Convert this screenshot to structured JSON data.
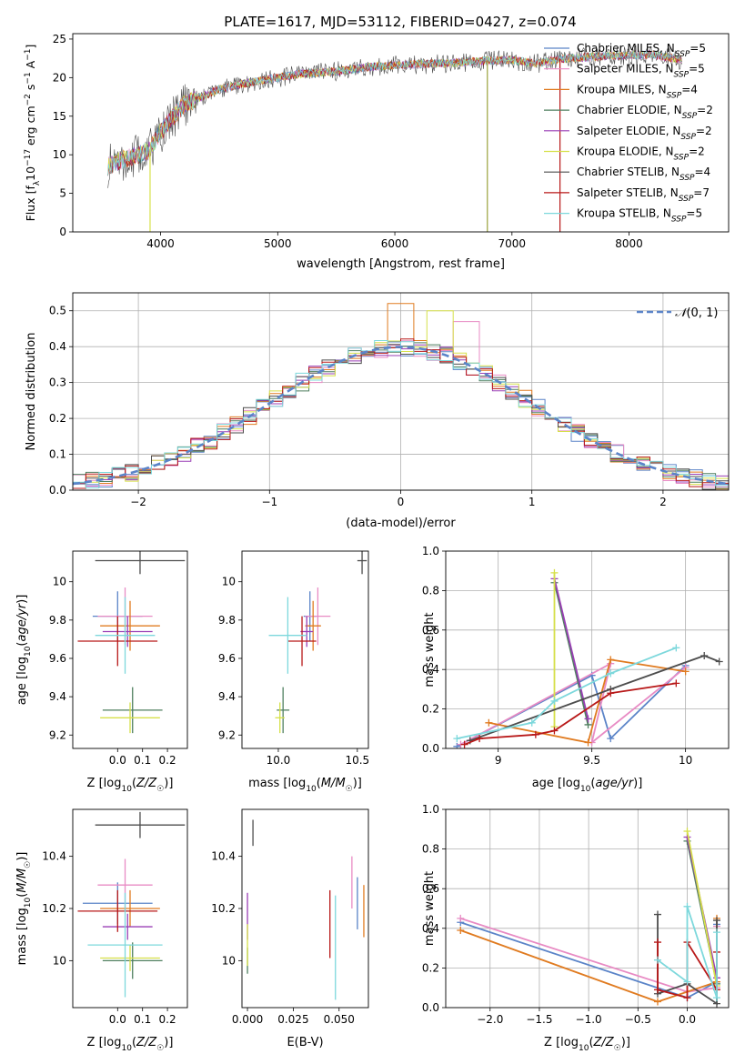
{
  "figure": {
    "title": "PLATE=1617, MJD=53112, FIBERID=0427, z=0.074"
  },
  "models": [
    {
      "name": "Chabrier MILES, N$_{SSP}$=5",
      "color": "#5b84c8"
    },
    {
      "name": "Salpeter MILES, N$_{SSP}$=5",
      "color": "#e88bc4"
    },
    {
      "name": "Kroupa MILES, N$_{SSP}$=4",
      "color": "#e07b20"
    },
    {
      "name": "Chabrier ELODIE, N$_{SSP}$=2",
      "color": "#4f7f5f"
    },
    {
      "name": "Salpeter ELODIE, N$_{SSP}$=2",
      "color": "#9a3fb5"
    },
    {
      "name": "Kroupa ELODIE, N$_{SSP}$=2",
      "color": "#d6e04a"
    },
    {
      "name": "Chabrier STELIB, N$_{SSP}$=4",
      "color": "#4d4d4d"
    },
    {
      "name": "Salpeter STELIB, N$_{SSP}$=7",
      "color": "#b81818"
    },
    {
      "name": "Kroupa STELIB, N$_{SSP}$=5",
      "color": "#7dd8dc"
    }
  ],
  "legend_labels": [
    {
      "pre": "Chabrier MILES, N",
      "sub": "SSP",
      "post": "=5"
    },
    {
      "pre": "Salpeter MILES, N",
      "sub": "SSP",
      "post": "=5"
    },
    {
      "pre": "Kroupa MILES, N",
      "sub": "SSP",
      "post": "=4"
    },
    {
      "pre": "Chabrier ELODIE, N",
      "sub": "SSP",
      "post": "=2"
    },
    {
      "pre": "Salpeter ELODIE, N",
      "sub": "SSP",
      "post": "=2"
    },
    {
      "pre": "Kroupa ELODIE, N",
      "sub": "SSP",
      "post": "=2"
    },
    {
      "pre": "Chabrier STELIB, N",
      "sub": "SSP",
      "post": "=4"
    },
    {
      "pre": "Salpeter STELIB, N",
      "sub": "SSP",
      "post": "=7"
    },
    {
      "pre": "Kroupa STELIB, N",
      "sub": "SSP",
      "post": "=5"
    }
  ],
  "chart_data": [
    {
      "id": "spectrum",
      "type": "line",
      "xlabel": "wavelength [Angstrom, rest frame]",
      "ylabel": "Flux [f_λ10^-17 erg cm^-2 s^-1 A^-1]",
      "xlim": [
        3250,
        8850
      ],
      "ylim": [
        0,
        25.7
      ],
      "xticks": [
        4000,
        5000,
        6000,
        7000,
        8000
      ],
      "yticks": [
        0,
        5,
        10,
        15,
        20,
        25
      ],
      "continuum_x": [
        3550,
        3700,
        3900,
        4000,
        4200,
        4500,
        4800,
        5000,
        5200,
        5500,
        5800,
        6000,
        6300,
        6600,
        6800,
        7000,
        7200,
        7400,
        7600,
        7800,
        8000,
        8200,
        8450
      ],
      "continuum_y": [
        8.5,
        9.5,
        10.5,
        13,
        16.5,
        18.5,
        19.5,
        20,
        20.5,
        20.8,
        21.4,
        21.6,
        21.8,
        22,
        22.2,
        22.3,
        21.8,
        22.4,
        22.6,
        22.8,
        22.9,
        23,
        22.3
      ],
      "spikes": [
        {
          "x": 3910,
          "y": 0
        },
        {
          "x": 6790,
          "y": 0
        },
        {
          "x": 7410,
          "y": 0
        }
      ]
    },
    {
      "id": "residual_hist",
      "type": "line",
      "xlabel": "(data-model)/error",
      "ylabel": "Normed distribution",
      "xlim": [
        -2.5,
        2.5
      ],
      "ylim": [
        0,
        0.55
      ],
      "xticks": [
        -2,
        -1,
        0,
        1,
        2
      ],
      "yticks": [
        0.0,
        0.1,
        0.2,
        0.3,
        0.4,
        0.5
      ],
      "grid": true,
      "legend": "N(0,1)",
      "legend_position": "top-right",
      "bin_width": 0.1
    },
    {
      "id": "age_vs_Z",
      "type": "scatter",
      "xlabel": "Z [log10(Z/Z☉)]",
      "ylabel": "age [log10(age/yr)]",
      "xlim": [
        -0.18,
        0.28
      ],
      "ylim": [
        9.13,
        10.16
      ],
      "xticks": [
        0.0,
        0.1,
        0.2
      ],
      "xticklabels": [
        "0.0",
        "0.1",
        "0.2"
      ],
      "yticks": [
        9.2,
        9.4,
        9.6,
        9.8,
        10.0
      ],
      "points": [
        {
          "m": 0,
          "x": 0.0,
          "y": 9.82,
          "xerr": 0.1,
          "yerr": 0.13
        },
        {
          "m": 1,
          "x": 0.03,
          "y": 9.82,
          "xerr": 0.11,
          "yerr": 0.15
        },
        {
          "m": 2,
          "x": 0.05,
          "y": 9.77,
          "xerr": 0.12,
          "yerr": 0.13
        },
        {
          "m": 3,
          "x": 0.06,
          "y": 9.33,
          "xerr": 0.12,
          "yerr": 0.12
        },
        {
          "m": 4,
          "x": 0.04,
          "y": 9.74,
          "xerr": 0.1,
          "yerr": 0.08
        },
        {
          "m": 5,
          "x": 0.05,
          "y": 9.29,
          "xerr": 0.12,
          "yerr": 0.08
        },
        {
          "m": 6,
          "x": 0.09,
          "y": 10.11,
          "xerr": 0.18,
          "yerr": 0.07
        },
        {
          "m": 7,
          "x": 0.0,
          "y": 9.69,
          "xerr": 0.16,
          "yerr": 0.13
        },
        {
          "m": 8,
          "x": 0.03,
          "y": 9.72,
          "xerr": 0.12,
          "yerr": 0.2
        }
      ]
    },
    {
      "id": "age_vs_mass",
      "type": "scatter",
      "xlabel": "mass [log10(M/M☉)]",
      "ylabel": "",
      "xlim": [
        9.77,
        10.57
      ],
      "ylim": [
        9.13,
        10.16
      ],
      "xticks": [
        10.0,
        10.5
      ],
      "xticklabels": [
        "10.0",
        "10.5"
      ],
      "yticks": [
        9.2,
        9.4,
        9.6,
        9.8,
        10.0
      ],
      "points": [
        {
          "m": 0,
          "x": 10.2,
          "y": 9.82,
          "xerr": 0.04,
          "yerr": 0.13
        },
        {
          "m": 1,
          "x": 10.25,
          "y": 9.82,
          "xerr": 0.08,
          "yerr": 0.15
        },
        {
          "m": 2,
          "x": 10.22,
          "y": 9.77,
          "xerr": 0.05,
          "yerr": 0.13
        },
        {
          "m": 3,
          "x": 10.03,
          "y": 9.33,
          "xerr": 0.04,
          "yerr": 0.12
        },
        {
          "m": 4,
          "x": 10.18,
          "y": 9.74,
          "xerr": 0.04,
          "yerr": 0.08
        },
        {
          "m": 5,
          "x": 10.01,
          "y": 9.29,
          "xerr": 0.03,
          "yerr": 0.08
        },
        {
          "m": 6,
          "x": 10.53,
          "y": 10.11,
          "xerr": 0.03,
          "yerr": 0.07
        },
        {
          "m": 7,
          "x": 10.15,
          "y": 9.69,
          "xerr": 0.09,
          "yerr": 0.13
        },
        {
          "m": 8,
          "x": 10.06,
          "y": 9.72,
          "xerr": 0.12,
          "yerr": 0.2
        }
      ]
    },
    {
      "id": "weight_vs_age",
      "type": "line",
      "xlabel": "age [log10(age/yr)]",
      "ylabel": "mass weight",
      "xlim": [
        8.72,
        10.23
      ],
      "ylim": [
        0,
        1.0
      ],
      "xticks": [
        9.0,
        9.5,
        10.0
      ],
      "yticks": [
        0.0,
        0.2,
        0.4,
        0.6,
        0.8,
        1.0
      ],
      "grid": true,
      "series": [
        {
          "m": 0,
          "x": [
            8.78,
            9.5,
            9.6,
            10.0
          ],
          "y": [
            0.01,
            0.37,
            0.05,
            0.42
          ]
        },
        {
          "m": 1,
          "x": [
            8.8,
            9.6,
            9.5,
            10.0
          ],
          "y": [
            0.02,
            0.43,
            0.03,
            0.41
          ]
        },
        {
          "m": 2,
          "x": [
            8.95,
            9.48,
            9.6,
            10.0
          ],
          "y": [
            0.13,
            0.03,
            0.45,
            0.39
          ]
        },
        {
          "m": 3,
          "x": [
            9.3,
            9.48
          ],
          "y": [
            0.84,
            0.12
          ]
        },
        {
          "m": 4,
          "x": [
            9.3,
            9.48
          ],
          "y": [
            0.86,
            0.15
          ]
        },
        {
          "m": 5,
          "x": [
            9.3,
            9.3
          ],
          "y": [
            0.89,
            0.11
          ]
        },
        {
          "m": 6,
          "x": [
            8.85,
            9.6,
            10.1,
            10.18
          ],
          "y": [
            0.04,
            0.3,
            0.47,
            0.44
          ]
        },
        {
          "m": 7,
          "x": [
            8.82,
            8.9,
            9.2,
            9.3,
            9.6,
            9.95
          ],
          "y": [
            0.02,
            0.05,
            0.07,
            0.09,
            0.28,
            0.33
          ]
        },
        {
          "m": 8,
          "x": [
            8.78,
            9.18,
            9.3,
            9.6,
            9.95
          ],
          "y": [
            0.05,
            0.13,
            0.24,
            0.38,
            0.51
          ]
        }
      ]
    },
    {
      "id": "mass_vs_Z",
      "type": "scatter",
      "xlabel": "Z [log10(Z/Z☉)]",
      "ylabel": "mass [log10(M/M☉)]",
      "xlim": [
        -0.18,
        0.28
      ],
      "ylim": [
        9.82,
        10.58
      ],
      "xticks": [
        0.0,
        0.1,
        0.2
      ],
      "xticklabels": [
        "0.0",
        "0.1",
        "0.2"
      ],
      "yticks": [
        10.0,
        10.2,
        10.4
      ],
      "points": [
        {
          "m": 0,
          "x": 0.0,
          "y": 10.22,
          "xerr": 0.14,
          "yerr": 0.08
        },
        {
          "m": 1,
          "x": 0.03,
          "y": 10.29,
          "xerr": 0.11,
          "yerr": 0.1
        },
        {
          "m": 2,
          "x": 0.05,
          "y": 10.2,
          "xerr": 0.12,
          "yerr": 0.07
        },
        {
          "m": 3,
          "x": 0.06,
          "y": 10.0,
          "xerr": 0.12,
          "yerr": 0.07
        },
        {
          "m": 4,
          "x": 0.04,
          "y": 10.13,
          "xerr": 0.1,
          "yerr": 0.05
        },
        {
          "m": 5,
          "x": 0.05,
          "y": 10.01,
          "xerr": 0.12,
          "yerr": 0.05
        },
        {
          "m": 6,
          "x": 0.09,
          "y": 10.52,
          "xerr": 0.18,
          "yerr": 0.05
        },
        {
          "m": 7,
          "x": 0.0,
          "y": 10.19,
          "xerr": 0.16,
          "yerr": 0.08
        },
        {
          "m": 8,
          "x": 0.03,
          "y": 10.06,
          "xerr": 0.15,
          "yerr": 0.2
        }
      ]
    },
    {
      "id": "mass_vs_ebv",
      "type": "scatter",
      "xlabel": "E(B-V)",
      "ylabel": "",
      "xlim": [
        -0.003,
        0.066
      ],
      "ylim": [
        9.82,
        10.58
      ],
      "xticks": [
        0.0,
        0.025,
        0.05
      ],
      "xticklabels": [
        "0.000",
        "0.025",
        "0.050"
      ],
      "yticks": [
        10.0,
        10.2,
        10.4
      ],
      "points": [
        {
          "m": 0,
          "x": 0.06,
          "y": 10.22,
          "xerr": 0,
          "yerr": 0.1
        },
        {
          "m": 1,
          "x": 0.057,
          "y": 10.3,
          "xerr": 0,
          "yerr": 0.1
        },
        {
          "m": 2,
          "x": 0.0635,
          "y": 10.19,
          "xerr": 0,
          "yerr": 0.1
        },
        {
          "m": 3,
          "x": 0.0,
          "y": 10.0,
          "xerr": 0,
          "yerr": 0.05
        },
        {
          "m": 4,
          "x": 0.0,
          "y": 10.17,
          "xerr": 0,
          "yerr": 0.09
        },
        {
          "m": 5,
          "x": 0.0,
          "y": 10.06,
          "xerr": 0,
          "yerr": 0.08
        },
        {
          "m": 6,
          "x": 0.003,
          "y": 10.49,
          "xerr": 0,
          "yerr": 0.05
        },
        {
          "m": 7,
          "x": 0.045,
          "y": 10.14,
          "xerr": 0,
          "yerr": 0.13
        },
        {
          "m": 8,
          "x": 0.048,
          "y": 10.05,
          "xerr": 0,
          "yerr": 0.2
        }
      ]
    },
    {
      "id": "weight_vs_Z",
      "type": "line",
      "xlabel": "Z [log10(Z/Z☉)]",
      "ylabel": "mass weight",
      "xlim": [
        -2.45,
        0.42
      ],
      "ylim": [
        0,
        1.0
      ],
      "xticks": [
        -2.0,
        -1.5,
        -1.0,
        -0.5,
        0.0
      ],
      "xticklabels": [
        "−2.0",
        "−1.5",
        "−1.0",
        "−0.5",
        "0.0"
      ],
      "yticks": [
        0.0,
        0.2,
        0.4,
        0.6,
        0.8,
        1.0
      ],
      "grid": true,
      "series": [
        {
          "m": 0,
          "x": [
            -2.3,
            0.0,
            0.3,
            0.3
          ],
          "y": [
            0.43,
            0.05,
            0.13,
            0.42
          ]
        },
        {
          "m": 1,
          "x": [
            -2.3,
            0.0,
            0.3,
            0.3
          ],
          "y": [
            0.45,
            0.08,
            0.1,
            0.41
          ]
        },
        {
          "m": 2,
          "x": [
            -2.3,
            -0.3,
            0.3,
            0.3
          ],
          "y": [
            0.39,
            0.03,
            0.13,
            0.45
          ]
        },
        {
          "m": 3,
          "x": [
            0.0,
            0.3
          ],
          "y": [
            0.84,
            0.12
          ]
        },
        {
          "m": 4,
          "x": [
            0.0,
            0.3
          ],
          "y": [
            0.86,
            0.15
          ]
        },
        {
          "m": 5,
          "x": [
            0.0,
            0.3
          ],
          "y": [
            0.89,
            0.11
          ]
        },
        {
          "m": 6,
          "x": [
            -0.3,
            -0.3,
            0.0,
            0.3,
            0.3
          ],
          "y": [
            0.47,
            0.07,
            0.12,
            0.02,
            0.44
          ]
        },
        {
          "m": 7,
          "x": [
            -0.3,
            -0.3,
            0.0,
            0.0,
            0.3,
            0.3
          ],
          "y": [
            0.33,
            0.09,
            0.05,
            0.33,
            0.09,
            0.28
          ]
        },
        {
          "m": 8,
          "x": [
            -0.3,
            0.0,
            0.0,
            0.3,
            0.3
          ],
          "y": [
            0.24,
            0.13,
            0.51,
            0.05,
            0.38
          ]
        }
      ]
    }
  ]
}
